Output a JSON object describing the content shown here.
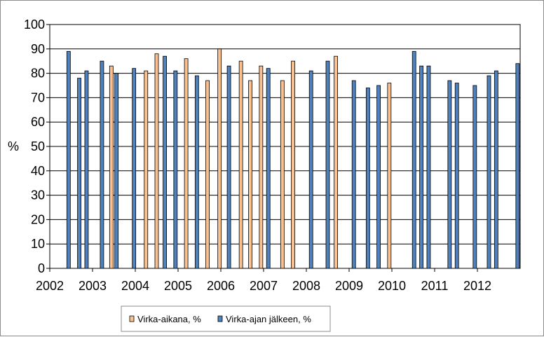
{
  "chart_data": {
    "type": "bar",
    "title": "",
    "xlabel": "",
    "ylabel": "%",
    "ylim": [
      0,
      100
    ],
    "xlim": [
      2002,
      2013
    ],
    "yticks": [
      0,
      10,
      20,
      30,
      40,
      50,
      60,
      70,
      80,
      90,
      100
    ],
    "xticks": [
      2002,
      2003,
      2004,
      2005,
      2006,
      2007,
      2008,
      2009,
      2010,
      2011,
      2012
    ],
    "gridlines": true,
    "legend_position": "bottom-center",
    "series": [
      {
        "name": "Virka-aikana, %",
        "color": "#fac090",
        "points": [
          {
            "x": 2003.44,
            "y": 83
          },
          {
            "x": 2004.25,
            "y": 81
          },
          {
            "x": 2004.5,
            "y": 88
          },
          {
            "x": 2005.19,
            "y": 86
          },
          {
            "x": 2005.69,
            "y": 77
          },
          {
            "x": 2005.97,
            "y": 90
          },
          {
            "x": 2006.47,
            "y": 85
          },
          {
            "x": 2006.69,
            "y": 77
          },
          {
            "x": 2006.94,
            "y": 83
          },
          {
            "x": 2007.44,
            "y": 77
          },
          {
            "x": 2007.69,
            "y": 85
          },
          {
            "x": 2008.69,
            "y": 87
          },
          {
            "x": 2009.94,
            "y": 76
          }
        ]
      },
      {
        "name": "Virka-ajan jälkeen, %",
        "color": "#4f81bd",
        "points": [
          {
            "x": 2002.44,
            "y": 89
          },
          {
            "x": 2002.69,
            "y": 78
          },
          {
            "x": 2002.86,
            "y": 81
          },
          {
            "x": 2003.22,
            "y": 85
          },
          {
            "x": 2003.56,
            "y": 80
          },
          {
            "x": 2003.97,
            "y": 82
          },
          {
            "x": 2004.69,
            "y": 87
          },
          {
            "x": 2004.94,
            "y": 81
          },
          {
            "x": 2005.44,
            "y": 79
          },
          {
            "x": 2006.19,
            "y": 83
          },
          {
            "x": 2007.11,
            "y": 82
          },
          {
            "x": 2008.11,
            "y": 81
          },
          {
            "x": 2008.5,
            "y": 85
          },
          {
            "x": 2009.11,
            "y": 77
          },
          {
            "x": 2009.44,
            "y": 74
          },
          {
            "x": 2009.69,
            "y": 75
          },
          {
            "x": 2010.52,
            "y": 89
          },
          {
            "x": 2010.69,
            "y": 83
          },
          {
            "x": 2010.86,
            "y": 83
          },
          {
            "x": 2011.35,
            "y": 77
          },
          {
            "x": 2011.52,
            "y": 76
          },
          {
            "x": 2011.94,
            "y": 75
          },
          {
            "x": 2012.27,
            "y": 79
          },
          {
            "x": 2012.44,
            "y": 81
          },
          {
            "x": 2012.94,
            "y": 84
          }
        ]
      }
    ]
  }
}
